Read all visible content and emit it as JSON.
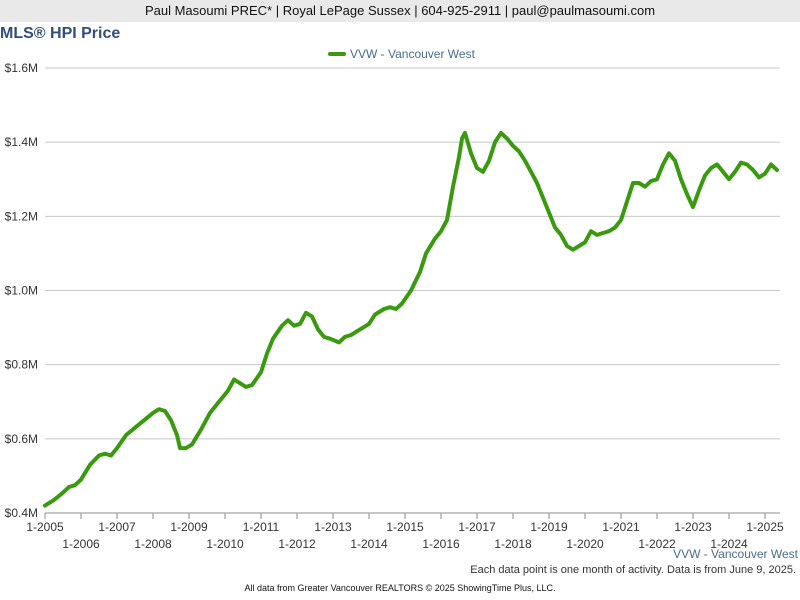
{
  "header": {
    "contact": "Paul Masoumi PREC* | Royal LePage Sussex | 604-925-2911 | paul@paulmasoumi.com"
  },
  "notes": {
    "activity": "Each data point is one month of activity. Data is from June 9, 2025.",
    "source": "All data from Greater Vancouver REALTORS © 2025 ShowingTime Plus, LLC."
  },
  "colors": {
    "series": "#3a9a0f",
    "grid": "#c8c8c8",
    "axis": "#8c8c8c",
    "title": "#2e4f7a",
    "legend_text": "#4a6b8c",
    "header_bg": "#e9e9e9"
  },
  "chart_data": {
    "type": "line",
    "title": "MLS® HPI Price",
    "xlabel": "",
    "ylabel": "",
    "legend_position": "top-center",
    "grid": "horizontal",
    "ylim": [
      400000,
      1600000
    ],
    "xlim": [
      "2005-01",
      "2025-06"
    ],
    "y_ticks": [
      400000,
      600000,
      800000,
      1000000,
      1200000,
      1400000,
      1600000
    ],
    "y_tick_labels": [
      "$0.4M",
      "$0.6M",
      "$0.8M",
      "$1.0M",
      "$1.2M",
      "$1.4M",
      "$1.6M"
    ],
    "x_ticks_upper": [
      "1-2005",
      "1-2007",
      "1-2009",
      "1-2011",
      "1-2013",
      "1-2015",
      "1-2017",
      "1-2019",
      "1-2021",
      "1-2023",
      "1-2025"
    ],
    "x_ticks_lower": [
      "1-2006",
      "1-2008",
      "1-2010",
      "1-2012",
      "1-2014",
      "1-2016",
      "1-2018",
      "1-2020",
      "1-2022",
      "1-2024"
    ],
    "bottom_series_label": "VVW - Vancouver West",
    "series": [
      {
        "name": "VVW - Vancouver West",
        "points": [
          [
            "2005-01",
            420000
          ],
          [
            "2005-04",
            435000
          ],
          [
            "2005-07",
            455000
          ],
          [
            "2005-09",
            470000
          ],
          [
            "2005-11",
            475000
          ],
          [
            "2006-01",
            490000
          ],
          [
            "2006-04",
            530000
          ],
          [
            "2006-07",
            555000
          ],
          [
            "2006-09",
            560000
          ],
          [
            "2006-11",
            555000
          ],
          [
            "2007-01",
            575000
          ],
          [
            "2007-04",
            610000
          ],
          [
            "2007-07",
            630000
          ],
          [
            "2007-10",
            650000
          ],
          [
            "2008-01",
            670000
          ],
          [
            "2008-03",
            680000
          ],
          [
            "2008-05",
            675000
          ],
          [
            "2008-07",
            650000
          ],
          [
            "2008-09",
            610000
          ],
          [
            "2008-10",
            575000
          ],
          [
            "2008-12",
            575000
          ],
          [
            "2009-02",
            585000
          ],
          [
            "2009-05",
            625000
          ],
          [
            "2009-08",
            670000
          ],
          [
            "2009-11",
            700000
          ],
          [
            "2010-02",
            730000
          ],
          [
            "2010-04",
            760000
          ],
          [
            "2010-06",
            750000
          ],
          [
            "2010-08",
            740000
          ],
          [
            "2010-10",
            745000
          ],
          [
            "2011-01",
            780000
          ],
          [
            "2011-03",
            830000
          ],
          [
            "2011-05",
            870000
          ],
          [
            "2011-08",
            905000
          ],
          [
            "2011-10",
            920000
          ],
          [
            "2011-12",
            905000
          ],
          [
            "2012-02",
            910000
          ],
          [
            "2012-04",
            940000
          ],
          [
            "2012-06",
            930000
          ],
          [
            "2012-08",
            895000
          ],
          [
            "2012-10",
            875000
          ],
          [
            "2012-12",
            870000
          ],
          [
            "2013-03",
            860000
          ],
          [
            "2013-05",
            875000
          ],
          [
            "2013-07",
            880000
          ],
          [
            "2013-10",
            895000
          ],
          [
            "2014-01",
            910000
          ],
          [
            "2014-03",
            935000
          ],
          [
            "2014-06",
            950000
          ],
          [
            "2014-08",
            955000
          ],
          [
            "2014-10",
            950000
          ],
          [
            "2014-12",
            965000
          ],
          [
            "2015-03",
            1000000
          ],
          [
            "2015-06",
            1050000
          ],
          [
            "2015-08",
            1100000
          ],
          [
            "2015-11",
            1140000
          ],
          [
            "2016-01",
            1160000
          ],
          [
            "2016-03",
            1190000
          ],
          [
            "2016-05",
            1280000
          ],
          [
            "2016-07",
            1360000
          ],
          [
            "2016-08",
            1410000
          ],
          [
            "2016-09",
            1425000
          ],
          [
            "2016-11",
            1370000
          ],
          [
            "2017-01",
            1330000
          ],
          [
            "2017-03",
            1320000
          ],
          [
            "2017-05",
            1350000
          ],
          [
            "2017-07",
            1400000
          ],
          [
            "2017-09",
            1425000
          ],
          [
            "2017-11",
            1410000
          ],
          [
            "2018-01",
            1390000
          ],
          [
            "2018-03",
            1375000
          ],
          [
            "2018-05",
            1350000
          ],
          [
            "2018-07",
            1320000
          ],
          [
            "2018-09",
            1290000
          ],
          [
            "2018-11",
            1250000
          ],
          [
            "2019-01",
            1210000
          ],
          [
            "2019-03",
            1170000
          ],
          [
            "2019-05",
            1150000
          ],
          [
            "2019-07",
            1120000
          ],
          [
            "2019-09",
            1110000
          ],
          [
            "2019-11",
            1120000
          ],
          [
            "2020-01",
            1130000
          ],
          [
            "2020-03",
            1160000
          ],
          [
            "2020-05",
            1150000
          ],
          [
            "2020-07",
            1155000
          ],
          [
            "2020-09",
            1160000
          ],
          [
            "2020-11",
            1170000
          ],
          [
            "2021-01",
            1190000
          ],
          [
            "2021-03",
            1240000
          ],
          [
            "2021-05",
            1290000
          ],
          [
            "2021-07",
            1290000
          ],
          [
            "2021-09",
            1280000
          ],
          [
            "2021-11",
            1295000
          ],
          [
            "2022-01",
            1300000
          ],
          [
            "2022-03",
            1340000
          ],
          [
            "2022-05",
            1370000
          ],
          [
            "2022-07",
            1350000
          ],
          [
            "2022-09",
            1300000
          ],
          [
            "2022-11",
            1260000
          ],
          [
            "2023-01",
            1225000
          ],
          [
            "2023-03",
            1270000
          ],
          [
            "2023-05",
            1310000
          ],
          [
            "2023-07",
            1330000
          ],
          [
            "2023-09",
            1340000
          ],
          [
            "2023-11",
            1320000
          ],
          [
            "2024-01",
            1300000
          ],
          [
            "2024-03",
            1320000
          ],
          [
            "2024-05",
            1345000
          ],
          [
            "2024-07",
            1340000
          ],
          [
            "2024-09",
            1325000
          ],
          [
            "2024-11",
            1305000
          ],
          [
            "2025-01",
            1315000
          ],
          [
            "2025-03",
            1340000
          ],
          [
            "2025-05",
            1325000
          ]
        ]
      }
    ]
  }
}
